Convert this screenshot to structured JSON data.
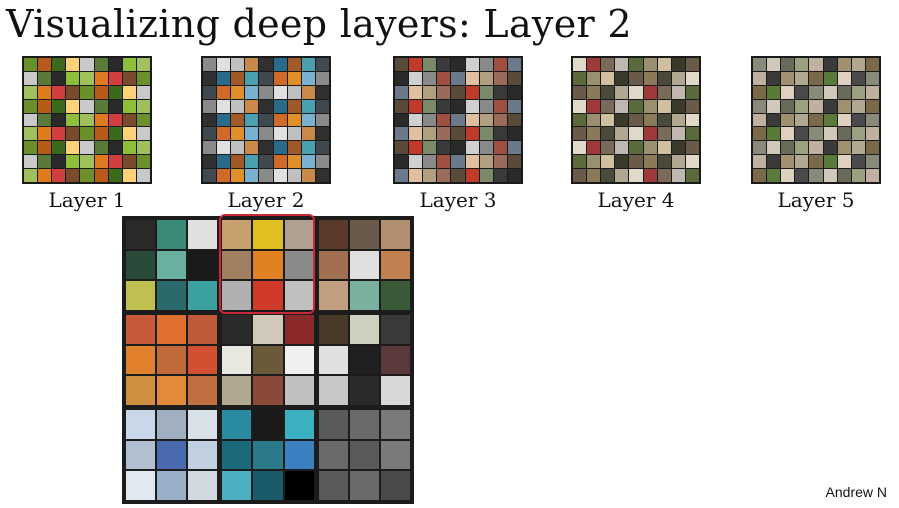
{
  "slide": {
    "title": "Visualizing deep layers: Layer 2",
    "author": "Andrew N"
  },
  "layers": [
    {
      "label": "Layer 1",
      "palette": [
        "#6b8f2a",
        "#8fbf3a",
        "#3c6a1c",
        "#e07a1f",
        "#c9c9c9",
        "#7a4a2a",
        "#2a2a2a",
        "#b85a1a",
        "#a0c060",
        "#ffd27a",
        "#d04040",
        "#5a7a3a"
      ]
    },
    {
      "label": "Layer 2",
      "palette": [
        "#c88a4a",
        "#e0902a",
        "#2a6a8a",
        "#8a8a8a",
        "#4aa0b0",
        "#c0c0c0",
        "#d06a2a",
        "#303030",
        "#7ab0d0",
        "#a05a2a",
        "#e0e0e0",
        "#404850"
      ]
    },
    {
      "label": "Layer 3",
      "palette": [
        "#8a8a8a",
        "#c03a2a",
        "#6a7a8a",
        "#3a3a3a",
        "#b0a080",
        "#d0d0d0",
        "#5a4a3a",
        "#a05040",
        "#7a8a6a",
        "#e0c0a0",
        "#2a2a2a",
        "#9a6a5a"
      ]
    },
    {
      "label": "Layer 4",
      "palette": [
        "#8a7a5a",
        "#5a6a3a",
        "#b0a890",
        "#d0c0a0",
        "#a03a3a",
        "#6a5a4a",
        "#c0b8b0",
        "#4a4a3a",
        "#9a9070",
        "#e0d8c8",
        "#3a3a2a",
        "#7a6a5a"
      ]
    },
    {
      "label": "Layer 5",
      "palette": [
        "#8a8a7a",
        "#b0a890",
        "#6a6a5a",
        "#5a7a3a",
        "#c0b0a0",
        "#4a4a4a",
        "#a09070",
        "#d0c8b8",
        "#7a6a4a",
        "#9aa080",
        "#e0d0c0",
        "#3a3a3a"
      ]
    }
  ],
  "big_grid": {
    "blocks": [
      [
        "#2a2a2a",
        "#3a8a7a",
        "#e0e0e0",
        "#2a4a3a",
        "#6ab0a0",
        "#1a1a1a",
        "#c0c050",
        "#2a6a6a",
        "#3aa0a0"
      ],
      [
        "#c8a070",
        "#e0c020",
        "#b0a090",
        "#a08060",
        "#e08020",
        "#8a8a8a",
        "#b0b0b0",
        "#d03a2a",
        "#c0c0c0"
      ],
      [
        "#5a3a2a",
        "#6a5a4a",
        "#b09070",
        "#a07050",
        "#e0e0e0",
        "#c08050",
        "#c0a080",
        "#7ab0a0",
        "#3a5a3a"
      ],
      [
        "#c85a3a",
        "#e07030",
        "#c05a3a",
        "#e0802a",
        "#c06a3a",
        "#d05030",
        "#d09040",
        "#e08a3a",
        "#c07040"
      ],
      [
        "#2a2a2a",
        "#d0c8b8",
        "#8a2a2a",
        "#e8e8e0",
        "#6a5a3a",
        "#f0f0f0",
        "#b0a890",
        "#8a4a3a",
        "#c0c0c0"
      ],
      [
        "#4a3a2a",
        "#d0d0c0",
        "#3a3a3a",
        "#e0e0e0",
        "#202020",
        "#5a3a3a",
        "#c8c8c8",
        "#2a2a2a",
        "#d8d8d8"
      ],
      [
        "#c8d8e8",
        "#a0b0c0",
        "#d8e0e8",
        "#b0c0d0",
        "#4a6ab0",
        "#c0d0e0",
        "#e0e8f0",
        "#9ab0c8",
        "#d0d8e0"
      ],
      [
        "#2a8aa0",
        "#1a1a1a",
        "#3ab0c0",
        "#1a6a7a",
        "#2a7a8a",
        "#3a80c0",
        "#4ab0c0",
        "#1a5a6a",
        "#000000"
      ],
      [
        "#5a5a5a",
        "#6a6a6a",
        "#7a7a7a",
        "#6a6a6a",
        "#5a5a5a",
        "#7a7a7a",
        "#5a5a5a",
        "#6a6a6a",
        "#4a4a4a"
      ]
    ]
  }
}
